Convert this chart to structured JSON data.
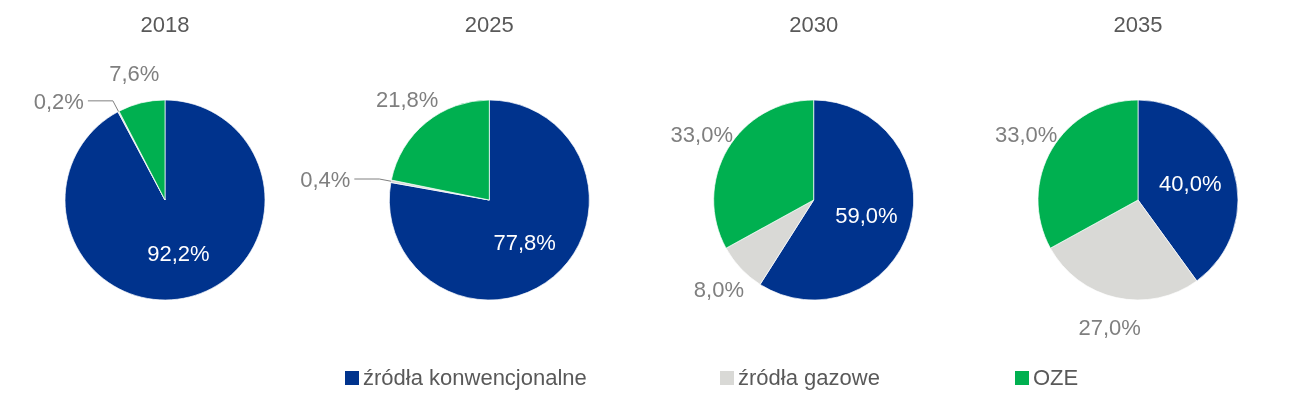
{
  "chart_data": [
    {
      "type": "pie",
      "title": "2018",
      "categories": [
        "źródła konwencjonalne",
        "źródła gazowe",
        "OZE"
      ],
      "values": [
        92.2,
        0.2,
        7.6
      ],
      "colors": [
        "#00338d",
        "#d9d9d6",
        "#00b050"
      ],
      "value_labels": [
        "92,2%",
        "0,2%",
        "7,6%"
      ],
      "legend": "bottom"
    },
    {
      "type": "pie",
      "title": "2025",
      "categories": [
        null,
        null,
        null
      ],
      "values": [
        77.8,
        0.4,
        21.8
      ],
      "colors": [
        "#00338d",
        "#d9d9d6",
        "#00b050"
      ],
      "value_labels": [
        "77,8%",
        "0,4%",
        "21,8%"
      ]
    },
    {
      "type": "pie",
      "title": "2030",
      "categories": [
        null,
        null,
        null
      ],
      "values": [
        59.0,
        8.0,
        33.0
      ],
      "colors": [
        "#00338d",
        "#d9d9d6",
        "#00b050"
      ],
      "value_labels": [
        "59,0%",
        "8,0%",
        "33,0%"
      ]
    },
    {
      "type": "pie",
      "title": "2035",
      "categories": [
        null,
        null,
        null
      ],
      "values": [
        40.0,
        27.0,
        33.0
      ],
      "colors": [
        "#00338d",
        "#d9d9d6",
        "#00b050"
      ],
      "value_labels": [
        "40,0%",
        "27,0%",
        "33,0%"
      ]
    }
  ]
}
